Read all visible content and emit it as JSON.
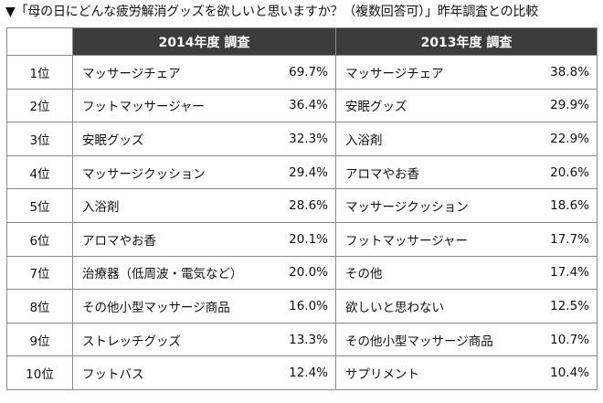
{
  "caption": "▼「母の日にどんな疲労解消グッズを欲しいと思いますか？（複数回答可）」昨年調査との比較",
  "headers": {
    "y2014": "2014年度 調査",
    "y2013": "2013年度 調査"
  },
  "rows": [
    {
      "rank": "1位",
      "item2014": "マッサージチェア",
      "pct2014": "69.7%",
      "item2013": "マッサージチェア",
      "pct2013": "38.8%"
    },
    {
      "rank": "2位",
      "item2014": "フットマッサージャー",
      "pct2014": "36.4%",
      "item2013": "安眠グッズ",
      "pct2013": "29.9%"
    },
    {
      "rank": "3位",
      "item2014": "安眠グッズ",
      "pct2014": "32.3%",
      "item2013": "入浴剤",
      "pct2013": "22.9%"
    },
    {
      "rank": "4位",
      "item2014": "マッサージクッション",
      "pct2014": "29.4%",
      "item2013": "アロマやお香",
      "pct2013": "20.6%"
    },
    {
      "rank": "5位",
      "item2014": "入浴剤",
      "pct2014": "28.6%",
      "item2013": "マッサージクッション",
      "pct2013": "18.6%"
    },
    {
      "rank": "6位",
      "item2014": "アロマやお香",
      "pct2014": "20.1%",
      "item2013": "フットマッサージャー",
      "pct2013": "17.7%"
    },
    {
      "rank": "7位",
      "item2014": "治療器（低周波・電気など）",
      "pct2014": "20.0%",
      "item2013": "その他",
      "pct2013": "17.4%"
    },
    {
      "rank": "8位",
      "item2014": "その他小型マッサージ商品",
      "pct2014": "16.0%",
      "item2013": "欲しいと思わない",
      "pct2013": "12.5%"
    },
    {
      "rank": "9位",
      "item2014": "ストレッチグッズ",
      "pct2014": "13.3%",
      "item2013": "その他小型マッサージ商品",
      "pct2013": "10.7%"
    },
    {
      "rank": "10位",
      "item2014": "フットバス",
      "pct2014": "12.4%",
      "item2013": "サプリメント",
      "pct2013": "10.4%"
    }
  ]
}
